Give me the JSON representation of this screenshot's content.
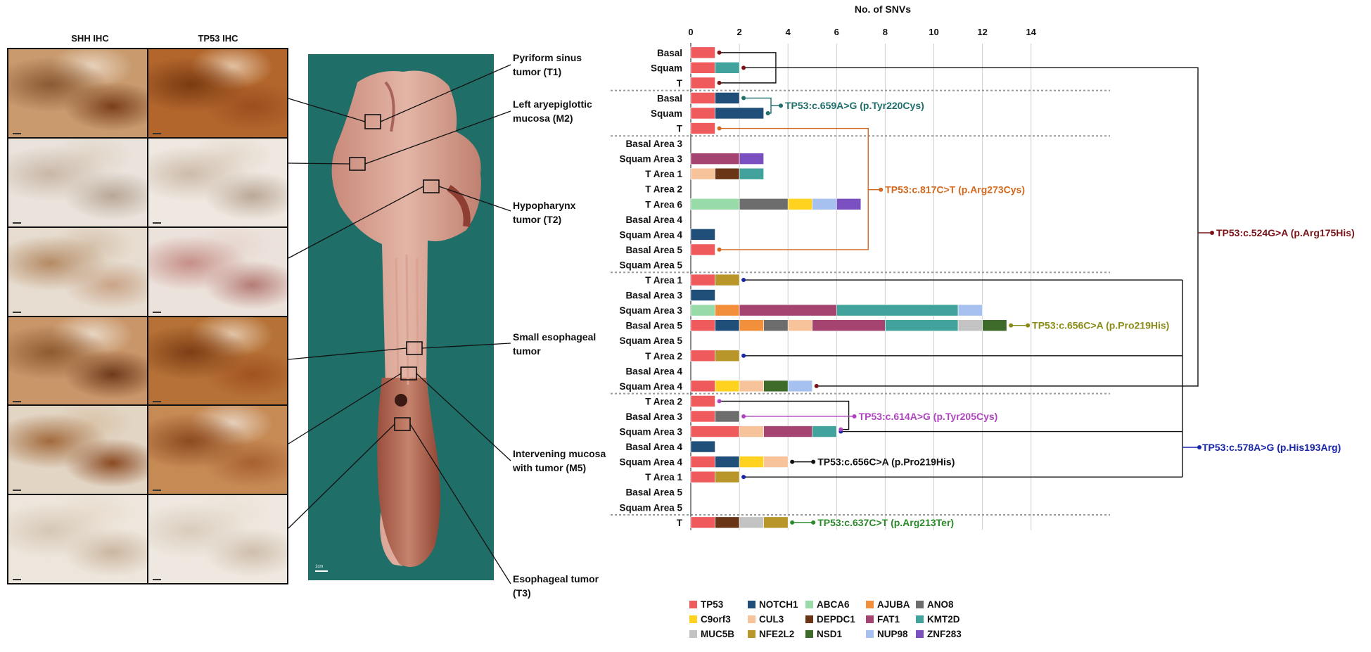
{
  "ihc": {
    "headers": [
      "SHH IHC",
      "TP53 IHC"
    ],
    "scale_label": "1cm"
  },
  "sites": [
    {
      "key": "t1",
      "label": [
        "Pyriform sinus",
        "tumor (T1)"
      ]
    },
    {
      "key": "m2",
      "label": [
        "Left aryepiglottic",
        "mucosa (M2)"
      ]
    },
    {
      "key": "t2",
      "label": [
        "Hypopharynx",
        "tumor (T2)"
      ]
    },
    {
      "key": "se",
      "label": [
        "Small esophageal",
        "tumor"
      ]
    },
    {
      "key": "m5",
      "label": [
        "Intervening mucosa",
        "with tumor (M5)"
      ]
    },
    {
      "key": "t3",
      "label": [
        "Esophageal tumor",
        "(T3)"
      ]
    }
  ],
  "colors": {
    "TP53": "#ef5a5c",
    "NOTCH1": "#1f4e79",
    "ABCA6": "#98dba8",
    "AJUBA": "#f28f3b",
    "ANO8": "#6d6d6d",
    "C9orf3": "#ffd21f",
    "CUL3": "#f7c39b",
    "DEPDC1": "#6a3516",
    "FAT1": "#a54470",
    "KMT2D": "#41a39b",
    "MUC5B": "#c3c3c3",
    "NFE2L2": "#b8962a",
    "NSD1": "#3e6b2a",
    "NUP98": "#a6c1ef",
    "ZNF283": "#7a4fbf"
  },
  "chart_data": {
    "type": "bar",
    "orientation": "horizontal",
    "stacked": true,
    "title": "No. of SNVs",
    "xlim": [
      0,
      15
    ],
    "xticks": [
      0,
      2,
      4,
      6,
      8,
      10,
      12,
      14
    ],
    "grid": true,
    "legend_position": "bottom",
    "legend": [
      "TP53",
      "NOTCH1",
      "ABCA6",
      "AJUBA",
      "ANO8",
      "C9orf3",
      "CUL3",
      "DEPDC1",
      "FAT1",
      "KMT2D",
      "MUC5B",
      "NFE2L2",
      "NSD1",
      "NUP98",
      "ZNF283"
    ],
    "groups": [
      {
        "site": "Pyriform sinus tumor (T1)",
        "rows": [
          {
            "label": "Basal",
            "segments": [
              [
                "TP53",
                1
              ]
            ]
          },
          {
            "label": "Squam",
            "segments": [
              [
                "TP53",
                1
              ],
              [
                "KMT2D",
                1
              ]
            ]
          },
          {
            "label": "T",
            "segments": [
              [
                "TP53",
                1
              ]
            ]
          }
        ]
      },
      {
        "site": "Left aryepiglottic mucosa (M2)",
        "rows": [
          {
            "label": "Basal",
            "segments": [
              [
                "TP53",
                1
              ],
              [
                "NOTCH1",
                1
              ]
            ]
          },
          {
            "label": "Squam",
            "segments": [
              [
                "TP53",
                1
              ],
              [
                "NOTCH1",
                2
              ]
            ]
          },
          {
            "label": "T",
            "segments": [
              [
                "TP53",
                1
              ]
            ]
          }
        ]
      },
      {
        "site": "Hypopharynx tumor (T2)",
        "rows": [
          {
            "label": "Basal Area 3",
            "segments": []
          },
          {
            "label": "Squam Area 3",
            "segments": [
              [
                "FAT1",
                2
              ],
              [
                "ZNF283",
                1
              ]
            ]
          },
          {
            "label": "T Area 1",
            "segments": [
              [
                "CUL3",
                1
              ],
              [
                "DEPDC1",
                1
              ],
              [
                "KMT2D",
                1
              ]
            ]
          },
          {
            "label": "T Area 2",
            "segments": []
          },
          {
            "label": "T Area 6",
            "segments": [
              [
                "ABCA6",
                2
              ],
              [
                "ANO8",
                2
              ],
              [
                "C9orf3",
                1
              ],
              [
                "NUP98",
                1
              ],
              [
                "ZNF283",
                1
              ]
            ]
          },
          {
            "label": "Basal Area 4",
            "segments": []
          },
          {
            "label": "Squam Area 4",
            "segments": [
              [
                "NOTCH1",
                1
              ]
            ]
          },
          {
            "label": "Basal Area 5",
            "segments": [
              [
                "TP53",
                1
              ]
            ]
          },
          {
            "label": "Squam Area 5",
            "segments": []
          }
        ]
      },
      {
        "site": "Small esophageal tumor",
        "rows": [
          {
            "label": "T Area 1",
            "segments": [
              [
                "TP53",
                1
              ],
              [
                "NFE2L2",
                1
              ]
            ]
          },
          {
            "label": "Basal Area 3",
            "segments": [
              [
                "NOTCH1",
                1
              ]
            ]
          },
          {
            "label": "Squam Area 3",
            "segments": [
              [
                "ABCA6",
                1
              ],
              [
                "AJUBA",
                1
              ],
              [
                "FAT1",
                4
              ],
              [
                "KMT2D",
                5
              ],
              [
                "NUP98",
                1
              ]
            ]
          },
          {
            "label": "Basal Area 5",
            "segments": [
              [
                "TP53",
                1
              ],
              [
                "NOTCH1",
                1
              ],
              [
                "AJUBA",
                1
              ],
              [
                "ANO8",
                1
              ],
              [
                "CUL3",
                1
              ],
              [
                "FAT1",
                3
              ],
              [
                "KMT2D",
                3
              ],
              [
                "MUC5B",
                1
              ],
              [
                "NSD1",
                1
              ]
            ]
          },
          {
            "label": "Squam Area 5",
            "segments": []
          },
          {
            "label": "T Area 2",
            "segments": [
              [
                "TP53",
                1
              ],
              [
                "NFE2L2",
                1
              ]
            ]
          },
          {
            "label": "Basal Area 4",
            "segments": []
          },
          {
            "label": "Squam Area 4",
            "segments": [
              [
                "TP53",
                1
              ],
              [
                "C9orf3",
                1
              ],
              [
                "CUL3",
                1
              ],
              [
                "NSD1",
                1
              ],
              [
                "NUP98",
                1
              ]
            ]
          }
        ]
      },
      {
        "site": "Intervening mucosa with tumor (M5)",
        "rows": [
          {
            "label": "T Area 2",
            "segments": [
              [
                "TP53",
                1
              ]
            ]
          },
          {
            "label": "Basal Area 3",
            "segments": [
              [
                "TP53",
                1
              ],
              [
                "ANO8",
                1
              ]
            ]
          },
          {
            "label": "Squam Area 3",
            "segments": [
              [
                "TP53",
                2
              ],
              [
                "CUL3",
                1
              ],
              [
                "FAT1",
                2
              ],
              [
                "KMT2D",
                1
              ]
            ]
          },
          {
            "label": "Basal Area 4",
            "segments": [
              [
                "NOTCH1",
                1
              ]
            ]
          },
          {
            "label": "Squam Area 4",
            "segments": [
              [
                "TP53",
                1
              ],
              [
                "NOTCH1",
                1
              ],
              [
                "C9orf3",
                1
              ],
              [
                "CUL3",
                1
              ]
            ]
          },
          {
            "label": "T Area 1",
            "segments": [
              [
                "TP53",
                1
              ],
              [
                "NFE2L2",
                1
              ]
            ]
          },
          {
            "label": "Basal Area 5",
            "segments": []
          },
          {
            "label": "Squam Area 5",
            "segments": []
          }
        ]
      },
      {
        "site": "Esophageal tumor (T3)",
        "rows": [
          {
            "label": "T",
            "segments": [
              [
                "TP53",
                1
              ],
              [
                "DEPDC1",
                1
              ],
              [
                "MUC5B",
                1
              ],
              [
                "NFE2L2",
                1
              ]
            ]
          }
        ]
      }
    ],
    "annotations": [
      {
        "text": "TP53:c.659A>G (p.Tyr220Cys)",
        "color": "#1e6e6a"
      },
      {
        "text": "TP53:c.817C>T (p.Arg273Cys)",
        "color": "#d2691e"
      },
      {
        "text": "TP53:c.524G>A (p.Arg175His)",
        "color": "#7a1418"
      },
      {
        "text": "TP53:c.656C>A (p.Pro219His)",
        "color": "#8a8a16"
      },
      {
        "text": "TP53:c.578A>G (p.His193Arg)",
        "color": "#1826a8"
      },
      {
        "text": "TP53:c.614A>G (p.Tyr205Cys)",
        "color": "#b044c0"
      },
      {
        "text": "TP53:c.656C>A (p.Pro219His)",
        "color": "#111111"
      },
      {
        "text": "TP53:c.637C>T (p.Arg213Ter)",
        "color": "#2a8a2a"
      }
    ]
  }
}
